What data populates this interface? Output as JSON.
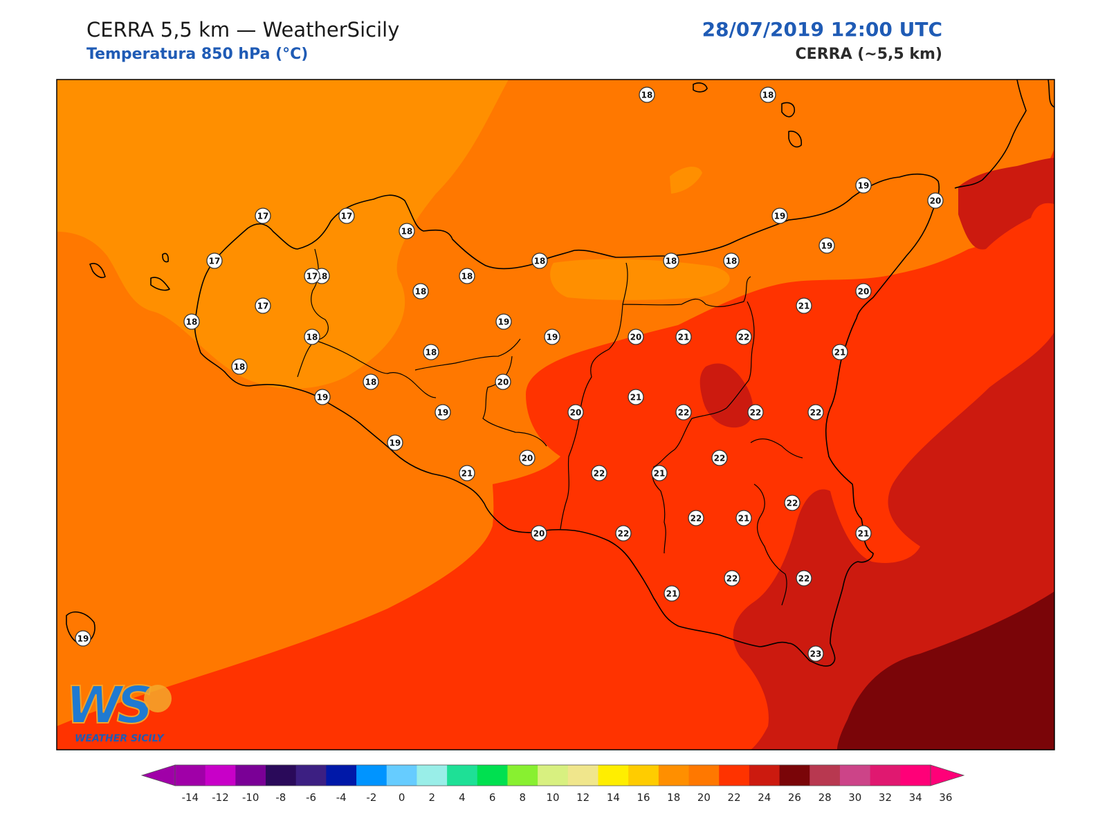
{
  "header": {
    "title": "CERRA 5,5 km — WeatherSicily",
    "subtitle": "Temperatura 850 hPa (°C)",
    "datetime": "28/07/2019 12:00 UTC",
    "model": "CERRA (~5,5 km)"
  },
  "logo": {
    "letters": "WS",
    "text": "WEATHER SICILY"
  },
  "colors": {
    "t16_18": "#ff8f00",
    "t18_20": "#ff7800",
    "t20_22": "#ff3300",
    "t22_24": "#cc1a0f",
    "t24_26": "#7a0508",
    "coast": "#000000"
  },
  "colorbar": {
    "colors": [
      "#a000a8",
      "#c800c8",
      "#7a0096",
      "#2a0a5a",
      "#3c1f82",
      "#0018a8",
      "#0094ff",
      "#66ccff",
      "#99eee8",
      "#1ee096",
      "#00e050",
      "#88f030",
      "#d8f080",
      "#f0e68c",
      "#ffee00",
      "#ffcc00",
      "#ff8f00",
      "#ff7800",
      "#ff3300",
      "#cc1a0f",
      "#7a0508",
      "#b83850",
      "#cc4488",
      "#e01870",
      "#ff0078"
    ],
    "ticks": [
      "-14",
      "-12",
      "-10",
      "-8",
      "-6",
      "-4",
      "-2",
      "0",
      "2",
      "4",
      "6",
      "8",
      "10",
      "12",
      "14",
      "16",
      "18",
      "20",
      "22",
      "24",
      "26",
      "28",
      "30",
      "32",
      "34",
      "36"
    ]
  },
  "stations": [
    {
      "v": "18"
    },
    {
      "v": "18"
    },
    {
      "v": "19"
    },
    {
      "v": "20"
    },
    {
      "v": "17"
    },
    {
      "v": "17"
    },
    {
      "v": "18"
    },
    {
      "v": "19"
    },
    {
      "v": "17"
    },
    {
      "v": "18"
    },
    {
      "v": "18"
    },
    {
      "v": "18"
    },
    {
      "v": "18"
    },
    {
      "v": "18"
    },
    {
      "v": "19"
    },
    {
      "v": "17"
    },
    {
      "v": "17"
    },
    {
      "v": "18"
    },
    {
      "v": "18"
    },
    {
      "v": "20"
    },
    {
      "v": "21"
    },
    {
      "v": "18"
    },
    {
      "v": "19"
    },
    {
      "v": "19"
    },
    {
      "v": "20"
    },
    {
      "v": "21"
    },
    {
      "v": "22"
    },
    {
      "v": "21"
    },
    {
      "v": "18"
    },
    {
      "v": "18"
    },
    {
      "v": "18"
    },
    {
      "v": "20"
    },
    {
      "v": "21"
    },
    {
      "v": "19"
    },
    {
      "v": "20"
    },
    {
      "v": "22"
    },
    {
      "v": "22"
    },
    {
      "v": "22"
    },
    {
      "v": "19"
    },
    {
      "v": "19"
    },
    {
      "v": "20"
    },
    {
      "v": "21"
    },
    {
      "v": "22"
    },
    {
      "v": "22"
    },
    {
      "v": "21"
    },
    {
      "v": "20"
    },
    {
      "v": "21"
    },
    {
      "v": "22"
    },
    {
      "v": "22"
    },
    {
      "v": "21"
    },
    {
      "v": "22"
    },
    {
      "v": "21"
    },
    {
      "v": "22"
    },
    {
      "v": "22"
    },
    {
      "v": "23"
    },
    {
      "v": "19"
    }
  ]
}
